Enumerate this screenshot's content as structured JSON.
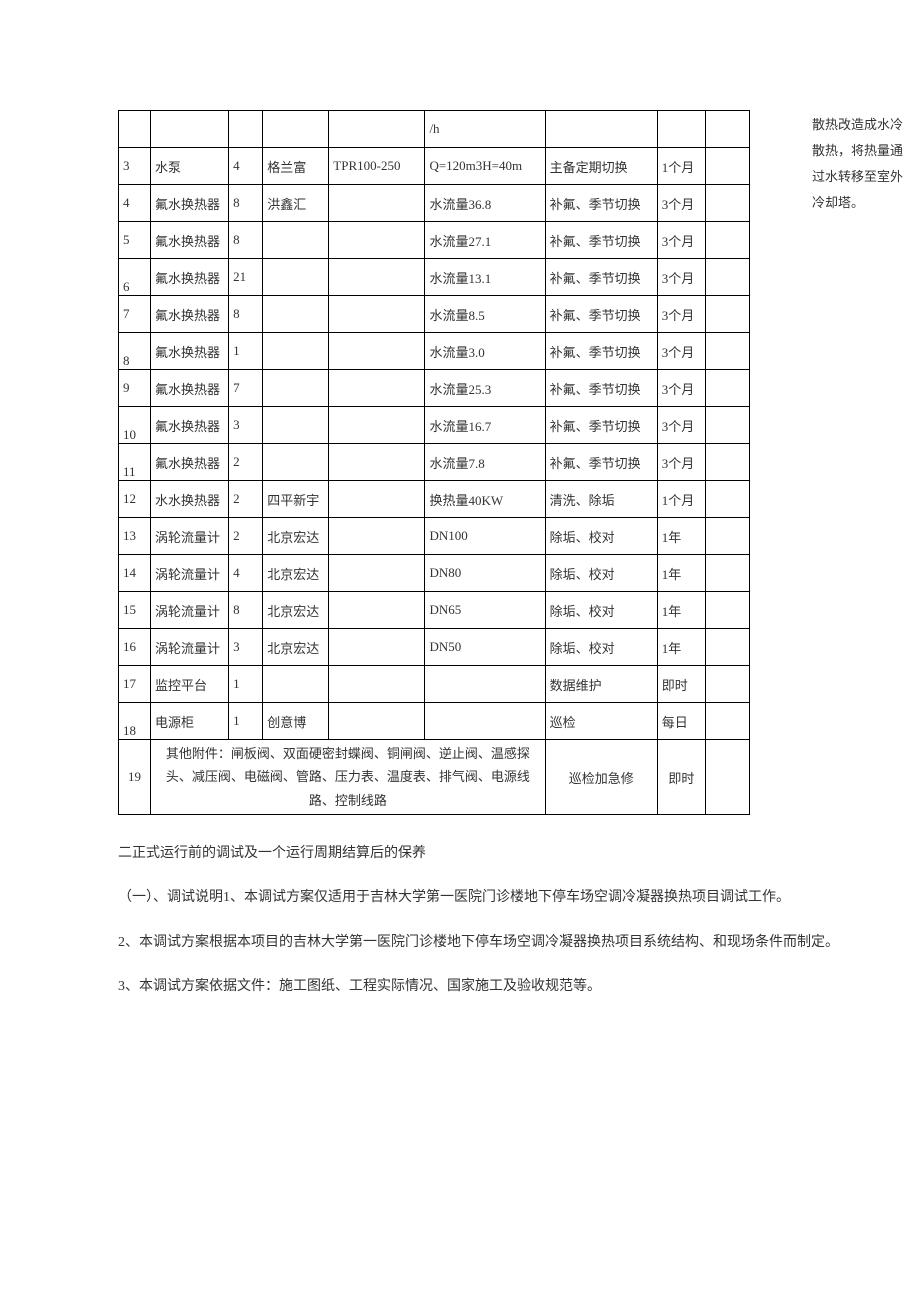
{
  "side_note": "散热改造成水冷散热，将热量通过水转移至室外冷却塔。",
  "table": {
    "row0": {
      "c5": "/h"
    },
    "rows": [
      {
        "n": "3",
        "name": "水泵",
        "qty": "4",
        "mfr": "格兰富",
        "model": "TPR100-250",
        "spec": "Q=120m3H=40m",
        "maint": "主备定期切换",
        "period": "1个月"
      },
      {
        "n": "4",
        "name": "氟水换热器",
        "qty": "8",
        "mfr": "洪鑫汇",
        "model": "",
        "spec": "水流量36.8",
        "maint": "补氟、季节切换",
        "period": "3个月"
      },
      {
        "n": "5",
        "name": "氟水换热器",
        "qty": "8",
        "mfr": "",
        "model": "",
        "spec": "水流量27.1",
        "maint": "补氟、季节切换",
        "period": "3个月"
      },
      {
        "n": "6",
        "name": "氟水换热器",
        "qty": "21",
        "mfr": "",
        "model": "",
        "spec": "水流量13.1",
        "maint": "补氟、季节切换",
        "period": "3个月"
      },
      {
        "n": "7",
        "name": "氟水换热器",
        "qty": "8",
        "mfr": "",
        "model": "",
        "spec": "水流量8.5",
        "maint": "补氟、季节切换",
        "period": "3个月"
      },
      {
        "n": "8",
        "name": "氟水换热器",
        "qty": "1",
        "mfr": "",
        "model": "",
        "spec": "水流量3.0",
        "maint": "补氟、季节切换",
        "period": "3个月"
      },
      {
        "n": "9",
        "name": "氟水换热器",
        "qty": "7",
        "mfr": "",
        "model": "",
        "spec": "水流量25.3",
        "maint": "补氟、季节切换",
        "period": "3个月"
      },
      {
        "n": "10",
        "name": "氟水换热器",
        "qty": "3",
        "mfr": "",
        "model": "",
        "spec": "水流量16.7",
        "maint": "补氟、季节切换",
        "period": "3个月"
      },
      {
        "n": "11",
        "name": "氟水换热器",
        "qty": "2",
        "mfr": "",
        "model": "",
        "spec": "水流量7.8",
        "maint": "补氟、季节切换",
        "period": "3个月"
      },
      {
        "n": "12",
        "name": "水水换热器",
        "qty": "2",
        "mfr": "四平新宇",
        "model": "",
        "spec": "换热量40KW",
        "maint": "清洗、除垢",
        "period": "1个月"
      },
      {
        "n": "13",
        "name": "涡轮流量计",
        "qty": "2",
        "mfr": "北京宏达",
        "model": "",
        "spec": "DN100",
        "maint": "除垢、校对",
        "period": "1年"
      },
      {
        "n": "14",
        "name": "涡轮流量计",
        "qty": "4",
        "mfr": "北京宏达",
        "model": "",
        "spec": "DN80",
        "maint": "除垢、校对",
        "period": "1年"
      },
      {
        "n": "15",
        "name": "涡轮流量计",
        "qty": "8",
        "mfr": "北京宏达",
        "model": "",
        "spec": "DN65",
        "maint": "除垢、校对",
        "period": "1年"
      },
      {
        "n": "16",
        "name": "涡轮流量计",
        "qty": "3",
        "mfr": "北京宏达",
        "model": "",
        "spec": "DN50",
        "maint": "除垢、校对",
        "period": "1年"
      },
      {
        "n": "17",
        "name": "监控平台",
        "qty": "1",
        "mfr": "",
        "model": "",
        "spec": "",
        "maint": "数据维护",
        "period": "即时"
      },
      {
        "n": "18",
        "name": "电源柜",
        "qty": "1",
        "mfr": "创意博",
        "model": "",
        "spec": "",
        "maint": "巡检",
        "period": "每日"
      }
    ],
    "row19": {
      "n": "19",
      "text": "其他附件：闸板阀、双面硬密封蝶阀、铜闸阀、逆止阀、温感探头、减压阀、电磁阀、管路、压力表、温度表、排气阀、电源线路、控制线路",
      "maint": "巡检加急修",
      "period": "即时"
    }
  },
  "below": {
    "h": "二正式运行前的调试及一个运行周期结算后的保养",
    "p1": "（一）、调试说明1、本调试方案仅适用于吉林大学第一医院门诊楼地下停车场空调冷凝器换热项目调试工作。",
    "p2": "2、本调试方案根据本项目的吉林大学第一医院门诊楼地下停车场空调冷凝器换热项目系统结构、和现场条件而制定。",
    "p3": "3、本调试方案依据文件：施工图纸、工程实际情况、国家施工及验收规范等。"
  }
}
